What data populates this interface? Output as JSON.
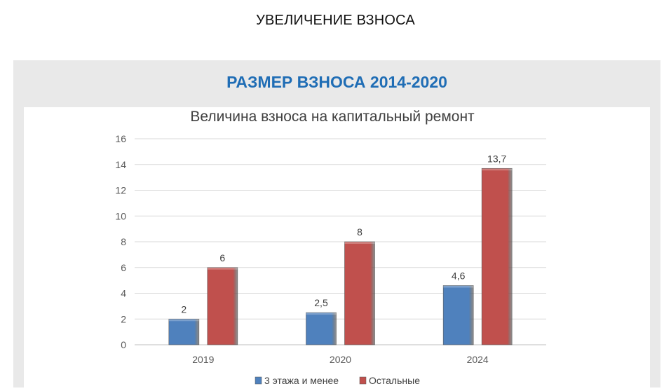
{
  "page": {
    "heading": "УВЕЛИЧЕНИЕ ВЗНОСА"
  },
  "panel": {
    "title": "РАЗМЕР ВЗНОСА 2014-2020"
  },
  "chart_data": {
    "type": "bar",
    "title": "Величина взноса на капитальный ремонт",
    "xlabel": "",
    "ylabel": "",
    "categories": [
      "2019",
      "2020",
      "2024"
    ],
    "series": [
      {
        "name": "3 этажа и менее",
        "values": [
          2,
          2.5,
          4.6
        ],
        "labels": [
          "2",
          "2,5",
          "4,6"
        ],
        "color": "#4f81bd"
      },
      {
        "name": "Остальные",
        "values": [
          6,
          8,
          13.7
        ],
        "labels": [
          "6",
          "8",
          "13,7"
        ],
        "color": "#c0504d"
      }
    ],
    "ylim": [
      0,
      16
    ],
    "yticks": [
      0,
      2,
      4,
      6,
      8,
      10,
      12,
      14,
      16
    ],
    "grid": true,
    "legend": "bottom"
  }
}
